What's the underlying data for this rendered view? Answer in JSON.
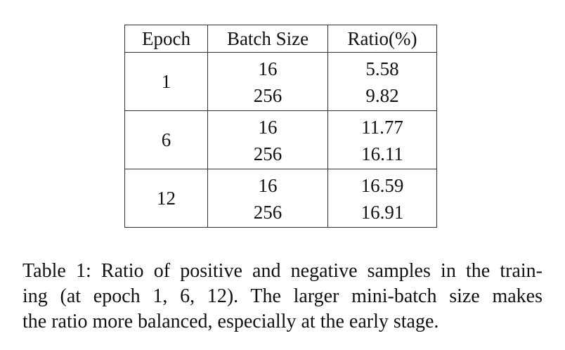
{
  "table": {
    "headers": {
      "epoch": "Epoch",
      "batch_size": "Batch Size",
      "ratio": "Ratio(%)"
    },
    "groups": [
      {
        "epoch": "1",
        "rows": [
          {
            "batch_size": "16",
            "ratio": "5.58",
            "bold": false
          },
          {
            "batch_size": "256",
            "ratio": "9.82",
            "bold": true
          }
        ]
      },
      {
        "epoch": "6",
        "rows": [
          {
            "batch_size": "16",
            "ratio": "11.77",
            "bold": false
          },
          {
            "batch_size": "256",
            "ratio": "16.11",
            "bold": true
          }
        ]
      },
      {
        "epoch": "12",
        "rows": [
          {
            "batch_size": "16",
            "ratio": "16.59",
            "bold": false
          },
          {
            "batch_size": "256",
            "ratio": "16.91",
            "bold": true
          }
        ]
      }
    ]
  },
  "caption": {
    "line1": "Table 1: Ratio of positive and negative samples in the train-",
    "line2": "ing (at epoch 1, 6, 12).  The larger mini-batch size makes",
    "line3": "the ratio more balanced, especially at the early stage."
  }
}
